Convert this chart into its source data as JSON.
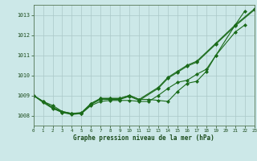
{
  "xlabel": "Graphe pression niveau de la mer (hPa)",
  "xlim": [
    0,
    23
  ],
  "ylim": [
    1007.5,
    1013.5
  ],
  "yticks": [
    1008,
    1009,
    1010,
    1011,
    1012,
    1013
  ],
  "xticks": [
    0,
    1,
    2,
    3,
    4,
    5,
    6,
    7,
    8,
    9,
    10,
    11,
    12,
    13,
    14,
    15,
    16,
    17,
    18,
    19,
    20,
    21,
    22,
    23
  ],
  "bg_color": "#cce8e8",
  "grid_color": "#aac8c8",
  "line_color": "#1a6b1a",
  "s1_x": [
    0,
    1,
    2,
    3,
    4,
    5,
    6,
    7,
    8,
    9,
    10,
    11,
    12,
    13,
    14,
    15,
    16,
    17,
    18,
    19,
    21,
    22
  ],
  "s1_y": [
    1009.0,
    1008.7,
    1008.5,
    1008.2,
    1008.1,
    1008.1,
    1008.6,
    1008.85,
    1008.85,
    1008.85,
    1009.0,
    1008.8,
    1008.8,
    1008.75,
    1008.7,
    1009.2,
    1009.6,
    1009.7,
    1010.2,
    1011.0,
    1012.5,
    1013.2
  ],
  "s2_x": [
    0,
    1,
    2,
    3,
    4,
    5,
    6,
    7,
    8,
    9,
    10,
    11,
    12,
    13,
    14,
    15,
    16,
    17,
    18,
    19,
    21,
    22
  ],
  "s2_y": [
    1009.0,
    1008.7,
    1008.4,
    1008.15,
    1008.1,
    1008.1,
    1008.5,
    1008.7,
    1008.75,
    1008.75,
    1008.75,
    1008.7,
    1008.7,
    1009.0,
    1009.35,
    1009.65,
    1009.75,
    1010.05,
    1010.3,
    1011.0,
    1012.15,
    1012.5
  ],
  "s3_x": [
    0,
    1,
    2,
    3,
    4,
    5,
    6,
    7,
    8,
    9,
    10,
    11,
    13,
    14,
    15,
    16,
    17,
    19,
    21,
    23
  ],
  "s3_y": [
    1009.0,
    1008.7,
    1008.4,
    1008.2,
    1008.1,
    1008.15,
    1008.6,
    1008.85,
    1008.85,
    1008.85,
    1009.0,
    1008.8,
    1009.4,
    1009.9,
    1010.2,
    1010.5,
    1010.7,
    1011.6,
    1012.5,
    1013.3
  ],
  "s4_x": [
    0,
    1,
    2,
    3,
    4,
    5,
    6,
    7,
    8,
    9,
    10,
    11,
    13,
    14,
    15,
    16,
    17,
    19,
    21,
    23
  ],
  "s4_y": [
    1009.0,
    1008.65,
    1008.35,
    1008.15,
    1008.05,
    1008.1,
    1008.55,
    1008.8,
    1008.8,
    1008.8,
    1008.95,
    1008.75,
    1009.35,
    1009.85,
    1010.15,
    1010.45,
    1010.65,
    1011.55,
    1012.45,
    1013.25
  ]
}
